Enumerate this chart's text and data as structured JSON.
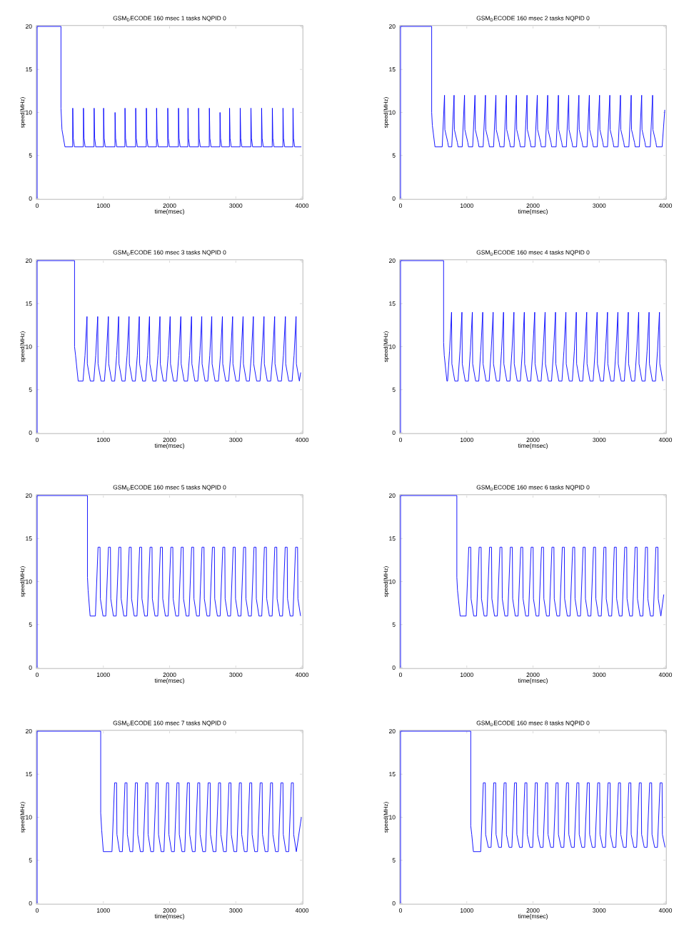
{
  "chart_data": [
    {
      "type": "line",
      "title": "GSM$_{D}$ECODE 160 msec 1 tasks NQPID 0",
      "xlabel": "time(msec)",
      "ylabel": "speed(MHz)",
      "color": "#0000ff",
      "xlim": [
        0,
        4000
      ],
      "ylim": [
        0,
        20
      ],
      "xticks": [
        0,
        1000,
        2000,
        3000,
        4000
      ],
      "yticks": [
        0,
        5,
        10,
        15,
        20
      ],
      "x": [
        0,
        0,
        360,
        360,
        375,
        420,
        536,
        538,
        546,
        563,
        698,
        700,
        708,
        725,
        859,
        861,
        869,
        886,
        1002,
        1004,
        1012,
        1029,
        1175,
        1177,
        1185,
        1202,
        1325,
        1327,
        1335,
        1352,
        1487,
        1489,
        1497,
        1514,
        1648,
        1650,
        1658,
        1675,
        1802,
        1804,
        1812,
        1829,
        1971,
        1973,
        1981,
        1998,
        2133,
        2135,
        2143,
        2160,
        2276,
        2278,
        2286,
        2303,
        2437,
        2439,
        2447,
        2464,
        2599,
        2601,
        2609,
        2626,
        2760,
        2762,
        2770,
        2787,
        2904,
        2906,
        2914,
        2931,
        3065,
        3067,
        3075,
        3092,
        3227,
        3229,
        3237,
        3254,
        3388,
        3390,
        3398,
        3415,
        3550,
        3552,
        3560,
        3577,
        3711,
        3713,
        3721,
        3738,
        3862,
        3864,
        3872,
        3889,
        3990
      ],
      "values": [
        0,
        20,
        20,
        10.5,
        8,
        6,
        6,
        10.5,
        7,
        6,
        6,
        10.5,
        7,
        6,
        6,
        10.5,
        7,
        6,
        6,
        10.5,
        7,
        6,
        6,
        10,
        7,
        6,
        6,
        10.5,
        7,
        6,
        6,
        10.5,
        7,
        6,
        6,
        10.5,
        7,
        6,
        6,
        10.5,
        7,
        6,
        6,
        10.5,
        7,
        6,
        6,
        10.5,
        7,
        6,
        6,
        10.5,
        7,
        6,
        6,
        10.5,
        7,
        6,
        6,
        10.5,
        7,
        6,
        6,
        10,
        7,
        6,
        6,
        10.5,
        7,
        6,
        6,
        10.5,
        7,
        6,
        6,
        10.5,
        7,
        6,
        6,
        10.5,
        7,
        6,
        6,
        10.5,
        7,
        6,
        6,
        10.5,
        7,
        6,
        6,
        10.5,
        7,
        6,
        6
      ]
    },
    {
      "type": "line",
      "title": "GSM$_{D}$ECODE 160 msec 2 tasks NQPID 0",
      "xlabel": "time(msec)",
      "ylabel": "speed(MHz)",
      "color": "#0000ff",
      "xlim": [
        0,
        4000
      ],
      "ylim": [
        0,
        20
      ],
      "xticks": [
        0,
        1000,
        2000,
        3000,
        4000
      ],
      "yticks": [
        0,
        5,
        10,
        15,
        20
      ],
      "x": [
        0,
        0,
        470,
        470,
        480,
        520,
        629,
        664,
        669,
        714,
        724,
        773,
        808,
        813,
        858,
        868,
        931,
        966,
        971,
        1016,
        1026,
        1089,
        1124,
        1129,
        1174,
        1184,
        1247,
        1282,
        1287,
        1332,
        1342,
        1405,
        1440,
        1445,
        1490,
        1500,
        1563,
        1598,
        1603,
        1648,
        1658,
        1714,
        1749,
        1754,
        1799,
        1809,
        1875,
        1910,
        1915,
        1960,
        1970,
        2030,
        2065,
        2070,
        2115,
        2125,
        2187,
        2222,
        2227,
        2272,
        2282,
        2349,
        2384,
        2389,
        2434,
        2444,
        2504,
        2539,
        2544,
        2589,
        2599,
        2658,
        2693,
        2698,
        2743,
        2753,
        2816,
        2851,
        2856,
        2901,
        2911,
        2970,
        3005,
        3010,
        3055,
        3065,
        3125,
        3160,
        3165,
        3210,
        3220,
        3286,
        3321,
        3326,
        3371,
        3381,
        3448,
        3483,
        3488,
        3533,
        3543,
        3606,
        3641,
        3646,
        3691,
        3701,
        3771,
        3806,
        3811,
        3856,
        3866,
        3950,
        3990
      ],
      "values": [
        0,
        20,
        20,
        10,
        8.5,
        6,
        6,
        12,
        8,
        6.5,
        6,
        6,
        12,
        8,
        6.5,
        6,
        6,
        12,
        8,
        6.5,
        6,
        6,
        12,
        8,
        6.5,
        6,
        6,
        12,
        8,
        6.5,
        6,
        6,
        12,
        8,
        6.5,
        6,
        6,
        12,
        8,
        6.5,
        6,
        6,
        12,
        8,
        6.5,
        6,
        6,
        12,
        8,
        6.5,
        6,
        6,
        12,
        8,
        6.5,
        6,
        6,
        12,
        8,
        6.5,
        6,
        6,
        12,
        8,
        6.5,
        6,
        6,
        12,
        8,
        6.5,
        6,
        6,
        12,
        8,
        6.5,
        6,
        6,
        12,
        8,
        6.5,
        6,
        6,
        12,
        8,
        6.5,
        6,
        6,
        12,
        8,
        6.5,
        6,
        6,
        12,
        8,
        6.5,
        6,
        6,
        12,
        8,
        6.5,
        6,
        6,
        12,
        8,
        6.5,
        6,
        6,
        12,
        8,
        6.5,
        6,
        6,
        10.3
      ]
    },
    {
      "type": "line",
      "title": "GSM$_{D}$ECODE 160 msec 3 tasks NQPID 0",
      "xlabel": "time(msec)",
      "ylabel": "speed(MHz)",
      "color": "#0000ff",
      "xlim": [
        0,
        4000
      ],
      "ylim": [
        0,
        20
      ],
      "xticks": [
        0,
        1000,
        2000,
        3000,
        4000
      ],
      "yticks": [
        0,
        5,
        10,
        15,
        20
      ],
      "x": [
        0,
        0,
        565,
        565,
        580,
        620,
        693,
        723,
        753,
        758,
        803,
        855,
        885,
        915,
        920,
        965,
        1016,
        1046,
        1076,
        1081,
        1126,
        1171,
        1201,
        1231,
        1236,
        1281,
        1328,
        1358,
        1388,
        1393,
        1438,
        1483,
        1513,
        1543,
        1548,
        1593,
        1637,
        1667,
        1697,
        1702,
        1747,
        1795,
        1825,
        1855,
        1860,
        1905,
        1949,
        1979,
        2009,
        2014,
        2059,
        2110,
        2140,
        2170,
        2175,
        2220,
        2272,
        2302,
        2332,
        2337,
        2382,
        2426,
        2456,
        2486,
        2491,
        2536,
        2577,
        2607,
        2637,
        2642,
        2687,
        2738,
        2768,
        2798,
        2803,
        2848,
        2892,
        2922,
        2952,
        2957,
        3002,
        3050,
        3080,
        3110,
        3115,
        3160,
        3205,
        3235,
        3265,
        3270,
        3315,
        3366,
        3396,
        3426,
        3431,
        3476,
        3527,
        3557,
        3587,
        3592,
        3637,
        3689,
        3719,
        3749,
        3754,
        3799,
        3850,
        3880,
        3910,
        3915,
        3960,
        3980
      ],
      "values": [
        0,
        20,
        20,
        10,
        9,
        6,
        6,
        9,
        13.5,
        8,
        6,
        6,
        9,
        13.5,
        8,
        6,
        6,
        9,
        13.5,
        8,
        6,
        6,
        9,
        13.5,
        8,
        6,
        6,
        9,
        13.5,
        8,
        6,
        6,
        9,
        13.5,
        8,
        6,
        6,
        9,
        13.5,
        8,
        6,
        6,
        9,
        13.5,
        8,
        6,
        6,
        9,
        13.5,
        8,
        6,
        6,
        9,
        13.5,
        8,
        6,
        6,
        9,
        13.5,
        8,
        6,
        6,
        9,
        13.5,
        8,
        6,
        6,
        9,
        13.5,
        8,
        6,
        6,
        9,
        13.5,
        8,
        6,
        6,
        9,
        13.5,
        8,
        6,
        6,
        9,
        13.5,
        8,
        6,
        6,
        9,
        13.5,
        8,
        6,
        6,
        9,
        13.5,
        8,
        6,
        6,
        9,
        13.5,
        8,
        6,
        6,
        9,
        13.5,
        8,
        6,
        6,
        9,
        13.5,
        8,
        6,
        7
      ]
    },
    {
      "type": "line",
      "title": "GSM$_{D}$ECODE 160 msec 4 tasks NQPID 0",
      "xlabel": "time(msec)",
      "ylabel": "speed(MHz)",
      "color": "#0000ff",
      "xlim": [
        0,
        4000
      ],
      "ylim": [
        0,
        20
      ],
      "xticks": [
        0,
        1000,
        2000,
        3000,
        4000
      ],
      "yticks": [
        0,
        5,
        10,
        15,
        20
      ],
      "x": [
        0,
        0,
        650,
        650,
        660,
        700,
        710,
        740,
        770,
        775,
        820,
        867,
        897,
        927,
        932,
        977,
        1024,
        1054,
        1084,
        1089,
        1134,
        1181,
        1211,
        1241,
        1246,
        1291,
        1338,
        1368,
        1398,
        1403,
        1448,
        1495,
        1525,
        1555,
        1560,
        1605,
        1652,
        1682,
        1712,
        1717,
        1762,
        1809,
        1839,
        1869,
        1874,
        1919,
        1966,
        1996,
        2026,
        2031,
        2076,
        2123,
        2153,
        2183,
        2188,
        2233,
        2280,
        2310,
        2340,
        2345,
        2390,
        2437,
        2467,
        2497,
        2502,
        2547,
        2594,
        2624,
        2654,
        2659,
        2704,
        2751,
        2781,
        2811,
        2816,
        2861,
        2908,
        2938,
        2968,
        2973,
        3018,
        3065,
        3095,
        3125,
        3130,
        3175,
        3222,
        3252,
        3282,
        3287,
        3332,
        3379,
        3409,
        3439,
        3444,
        3489,
        3536,
        3566,
        3596,
        3601,
        3646,
        3693,
        3723,
        3753,
        3758,
        3803,
        3850,
        3880,
        3910,
        3915,
        3960
      ],
      "values": [
        0,
        20,
        20,
        10.5,
        9,
        6,
        6,
        9.5,
        14,
        8,
        6,
        6,
        9.5,
        14,
        8,
        6,
        6,
        9.5,
        14,
        8,
        6,
        6,
        9.5,
        14,
        8,
        6,
        6,
        9.5,
        14,
        8,
        6,
        6,
        9.5,
        14,
        8,
        6,
        6,
        9.5,
        14,
        8,
        6,
        6,
        9.5,
        14,
        8,
        6,
        6,
        9.5,
        14,
        8,
        6,
        6,
        9.5,
        14,
        8,
        6,
        6,
        9.5,
        14,
        8,
        6,
        6,
        9.5,
        14,
        8,
        6,
        6,
        9.5,
        14,
        8,
        6,
        6,
        9.5,
        14,
        8,
        6,
        6,
        9.5,
        14,
        8,
        6,
        6,
        9.5,
        14,
        8,
        6,
        6,
        9.5,
        14,
        8,
        6,
        6,
        9.5,
        14,
        8,
        6,
        6,
        9.5,
        14,
        8,
        6,
        6,
        9.5,
        14,
        8,
        6,
        6,
        9.5,
        14,
        8,
        6
      ]
    },
    {
      "type": "line",
      "title": "GSM$_{D}$ECODE 160 msec 5 tasks NQPID 0",
      "xlabel": "time(msec)",
      "ylabel": "speed(MHz)",
      "color": "#0000ff",
      "xlim": [
        0,
        4000
      ],
      "ylim": [
        0,
        20
      ],
      "xticks": [
        0,
        1000,
        2000,
        3000,
        4000
      ],
      "yticks": [
        0,
        5,
        10,
        15,
        20
      ],
      "x": [
        0,
        0,
        760,
        760,
        770,
        800,
        860,
        880,
        920,
        950,
        955,
        995,
        1037,
        1077,
        1107,
        1112,
        1152,
        1194,
        1234,
        1264,
        1269,
        1309,
        1351,
        1391,
        1421,
        1426,
        1466,
        1508,
        1548,
        1578,
        1583,
        1623,
        1665,
        1705,
        1735,
        1740,
        1780,
        1822,
        1862,
        1892,
        1897,
        1937,
        1979,
        2019,
        2049,
        2054,
        2094,
        2136,
        2176,
        2206,
        2211,
        2251,
        2293,
        2333,
        2363,
        2368,
        2408,
        2450,
        2490,
        2520,
        2525,
        2565,
        2607,
        2647,
        2677,
        2682,
        2722,
        2764,
        2804,
        2834,
        2839,
        2879,
        2921,
        2961,
        2991,
        2996,
        3036,
        3078,
        3118,
        3148,
        3153,
        3193,
        3235,
        3275,
        3305,
        3310,
        3350,
        3392,
        3432,
        3462,
        3467,
        3507,
        3549,
        3589,
        3619,
        3624,
        3664,
        3706,
        3746,
        3776,
        3781,
        3821,
        3863,
        3903,
        3933,
        3938,
        3978
      ],
      "values": [
        0,
        20,
        20,
        10.5,
        9,
        6,
        6,
        6,
        14,
        14,
        8,
        6,
        6,
        14,
        14,
        8,
        6,
        6,
        14,
        14,
        8,
        6,
        6,
        14,
        14,
        8,
        6,
        6,
        14,
        14,
        8,
        6,
        6,
        14,
        14,
        8,
        6,
        6,
        14,
        14,
        8,
        6,
        6,
        14,
        14,
        8,
        6,
        6,
        14,
        14,
        8,
        6,
        6,
        14,
        14,
        8,
        6,
        6,
        14,
        14,
        8,
        6,
        6,
        14,
        14,
        8,
        6,
        6,
        14,
        14,
        8,
        6,
        6,
        14,
        14,
        8,
        6,
        6,
        14,
        14,
        8,
        6,
        6,
        14,
        14,
        8,
        6,
        6,
        14,
        14,
        8,
        6,
        6,
        14,
        14,
        8,
        6,
        6,
        14,
        14,
        8,
        6,
        6,
        14,
        14,
        8,
        6
      ]
    },
    {
      "type": "line",
      "title": "GSM$_{D}$ECODE 160 msec 6 tasks NQPID 0",
      "xlabel": "time(msec)",
      "ylabel": "speed(MHz)",
      "color": "#0000ff",
      "xlim": [
        0,
        4000
      ],
      "ylim": [
        0,
        20
      ],
      "xticks": [
        0,
        1000,
        2000,
        3000,
        4000
      ],
      "yticks": [
        0,
        5,
        10,
        15,
        20
      ],
      "x": [
        0,
        0,
        850,
        850,
        860,
        900,
        990,
        990,
        1030,
        1060,
        1065,
        1105,
        1147,
        1187,
        1217,
        1222,
        1262,
        1304,
        1344,
        1374,
        1379,
        1419,
        1461,
        1501,
        1531,
        1536,
        1576,
        1618,
        1658,
        1688,
        1693,
        1733,
        1775,
        1815,
        1845,
        1850,
        1890,
        1932,
        1972,
        2002,
        2007,
        2047,
        2089,
        2129,
        2159,
        2164,
        2204,
        2246,
        2286,
        2316,
        2321,
        2361,
        2403,
        2443,
        2473,
        2478,
        2518,
        2560,
        2600,
        2630,
        2635,
        2675,
        2717,
        2757,
        2787,
        2792,
        2832,
        2874,
        2914,
        2944,
        2949,
        2989,
        3031,
        3071,
        3101,
        3106,
        3146,
        3188,
        3228,
        3258,
        3263,
        3303,
        3345,
        3385,
        3415,
        3420,
        3460,
        3502,
        3542,
        3572,
        3577,
        3617,
        3659,
        3699,
        3729,
        3734,
        3774,
        3816,
        3856,
        3886,
        3891,
        3931,
        3975
      ],
      "values": [
        0,
        20,
        20,
        10.5,
        9,
        6,
        6,
        6,
        14,
        14,
        8,
        6,
        6,
        14,
        14,
        8,
        6,
        6,
        14,
        14,
        8,
        6,
        6,
        14,
        14,
        8,
        6,
        6,
        14,
        14,
        8,
        6,
        6,
        14,
        14,
        8,
        6,
        6,
        14,
        14,
        8,
        6,
        6,
        14,
        14,
        8,
        6,
        6,
        14,
        14,
        8,
        6,
        6,
        14,
        14,
        8,
        6,
        6,
        14,
        14,
        8,
        6,
        6,
        14,
        14,
        8,
        6,
        6,
        14,
        14,
        8,
        6,
        6,
        14,
        14,
        8,
        6,
        6,
        14,
        14,
        8,
        6,
        6,
        14,
        14,
        8,
        6,
        6,
        14,
        14,
        8,
        6,
        6,
        14,
        14,
        8,
        6,
        6,
        14,
        14,
        8,
        6,
        8.5
      ]
    },
    {
      "type": "line",
      "title": "GSM$_{D}$ECODE 160 msec 7 tasks NQPID 0",
      "xlabel": "time(msec)",
      "ylabel": "speed(MHz)",
      "color": "#0000ff",
      "xlim": [
        0,
        4000
      ],
      "ylim": [
        0,
        20
      ],
      "xticks": [
        0,
        1000,
        2000,
        3000,
        4000
      ],
      "yticks": [
        0,
        5,
        10,
        15,
        20
      ],
      "x": [
        0,
        0,
        960,
        960,
        975,
        1000,
        1130,
        1130,
        1170,
        1200,
        1205,
        1245,
        1287,
        1327,
        1357,
        1362,
        1402,
        1444,
        1484,
        1514,
        1519,
        1559,
        1601,
        1641,
        1671,
        1676,
        1716,
        1758,
        1798,
        1828,
        1833,
        1873,
        1915,
        1955,
        1985,
        1990,
        2030,
        2072,
        2112,
        2142,
        2147,
        2187,
        2229,
        2269,
        2299,
        2304,
        2344,
        2386,
        2426,
        2456,
        2461,
        2501,
        2543,
        2583,
        2613,
        2618,
        2658,
        2700,
        2740,
        2770,
        2775,
        2815,
        2857,
        2897,
        2927,
        2932,
        2972,
        3014,
        3054,
        3084,
        3089,
        3129,
        3171,
        3211,
        3241,
        3246,
        3286,
        3328,
        3368,
        3398,
        3403,
        3443,
        3485,
        3525,
        3555,
        3560,
        3600,
        3642,
        3682,
        3712,
        3717,
        3757,
        3799,
        3839,
        3869,
        3874,
        3914,
        3990
      ],
      "values": [
        0,
        20,
        20,
        10.5,
        8.5,
        6,
        6,
        6,
        14,
        14,
        8,
        6,
        6,
        14,
        14,
        8,
        6,
        6,
        14,
        14,
        8,
        6,
        6,
        14,
        14,
        8,
        6,
        6,
        14,
        14,
        8,
        6,
        6,
        14,
        14,
        8,
        6,
        6,
        14,
        14,
        8,
        6,
        6,
        14,
        14,
        8,
        6,
        6,
        14,
        14,
        8,
        6,
        6,
        14,
        14,
        8,
        6,
        6,
        14,
        14,
        8,
        6,
        6,
        14,
        14,
        8,
        6,
        6,
        14,
        14,
        8,
        6,
        6,
        14,
        14,
        8,
        6,
        6,
        14,
        14,
        8,
        6,
        6,
        14,
        14,
        8,
        6,
        6,
        14,
        14,
        8,
        6,
        6,
        14,
        14,
        8,
        6,
        10
      ]
    },
    {
      "type": "line",
      "title": "GSM$_{D}$ECODE 160 msec 8 tasks NQPID 0",
      "xlabel": "time(msec)",
      "ylabel": "speed(MHz)",
      "color": "#0000ff",
      "xlim": [
        0,
        4000
      ],
      "ylim": [
        0,
        20
      ],
      "xticks": [
        0,
        1000,
        2000,
        3000,
        4000
      ],
      "yticks": [
        0,
        5,
        10,
        15,
        20
      ],
      "x": [
        0,
        0,
        1060,
        1060,
        1075,
        1100,
        1210,
        1210,
        1250,
        1280,
        1285,
        1325,
        1367,
        1407,
        1437,
        1442,
        1482,
        1524,
        1564,
        1594,
        1599,
        1639,
        1681,
        1721,
        1751,
        1756,
        1796,
        1838,
        1878,
        1908,
        1913,
        1953,
        1995,
        2035,
        2065,
        2070,
        2110,
        2152,
        2192,
        2222,
        2227,
        2267,
        2309,
        2349,
        2379,
        2384,
        2424,
        2466,
        2506,
        2536,
        2541,
        2581,
        2623,
        2663,
        2693,
        2698,
        2738,
        2780,
        2820,
        2850,
        2855,
        2895,
        2937,
        2977,
        3007,
        3012,
        3052,
        3094,
        3134,
        3164,
        3169,
        3209,
        3251,
        3291,
        3321,
        3326,
        3366,
        3408,
        3448,
        3478,
        3483,
        3523,
        3565,
        3605,
        3635,
        3640,
        3680,
        3722,
        3762,
        3792,
        3797,
        3837,
        3879,
        3919,
        3949,
        3954,
        3994
      ],
      "values": [
        0,
        20,
        20,
        9,
        8,
        6,
        6,
        6,
        14,
        14,
        8,
        6.5,
        6.5,
        14,
        14,
        8,
        6.5,
        6.5,
        14,
        14,
        8,
        6.5,
        6.5,
        14,
        14,
        8,
        6.5,
        6.5,
        14,
        14,
        8,
        6.5,
        6.5,
        14,
        14,
        8,
        6.5,
        6.5,
        14,
        14,
        8,
        6.5,
        6.5,
        14,
        14,
        8,
        6.5,
        6.5,
        14,
        14,
        8,
        6.5,
        6.5,
        14,
        14,
        8,
        6.5,
        6.5,
        14,
        14,
        8,
        6.5,
        6.5,
        14,
        14,
        8,
        6.5,
        6.5,
        14,
        14,
        8,
        6.5,
        6.5,
        14,
        14,
        8,
        6.5,
        6.5,
        14,
        14,
        8,
        6.5,
        6.5,
        14,
        14,
        8,
        6.5,
        6.5,
        14,
        14,
        8,
        6.5,
        6.5,
        14,
        14,
        8,
        6.5
      ]
    }
  ]
}
